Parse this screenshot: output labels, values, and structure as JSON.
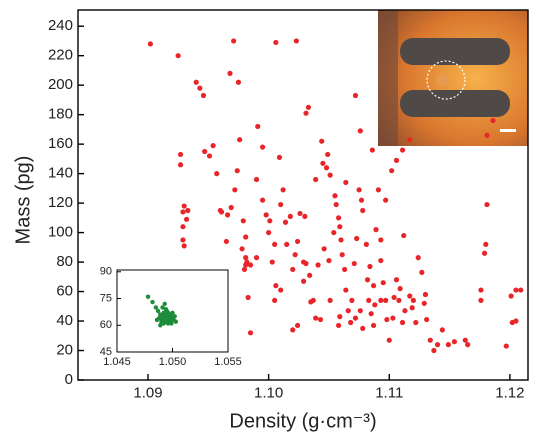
{
  "chart_data": [
    {
      "type": "scatter",
      "xlabel": "Density (g·cm⁻³)",
      "ylabel": "Mass (pg)",
      "color": "#e8262a",
      "xlim": [
        1.0842,
        1.1215
      ],
      "ylim": [
        0,
        251
      ],
      "xticks": [
        1.09,
        {
          "value": 1.1,
          "label": "1.10"
        },
        1.11,
        1.12
      ],
      "yticks": [
        0,
        20,
        40,
        60,
        80,
        100,
        120,
        140,
        160,
        180,
        200,
        220,
        240
      ],
      "x": [
        1.0902,
        1.0925,
        1.094,
        1.0943,
        1.0946,
        1.0971,
        1.0975,
        1.0968,
        1.1006,
        1.1023,
        1.0927,
        1.0927,
        1.093,
        1.0929,
        1.0932,
        1.0929,
        1.0929,
        1.093,
        1.0933,
        1.0947,
        1.0951,
        1.0954,
        1.0957,
        1.0961,
        1.0966,
        1.0969,
        1.0972,
        1.0974,
        1.0976,
        1.0979,
        1.0981,
        1.0978,
        1.0981,
        1.0982,
        1.0981,
        1.098,
        1.0983,
        1.0985,
        1.099,
        1.099,
        1.0991,
        1.0995,
        1.0995,
        1.0998,
        1.1,
        1.1001,
        1.1003,
        1.1005,
        1.1006,
        1.1009,
        1.101,
        1.1012,
        1.1014,
        1.1015,
        1.1018,
        1.102,
        1.1022,
        1.1024,
        1.1026,
        1.1029,
        1.1029,
        1.1031,
        1.1031,
        1.1033,
        1.103,
        1.1034,
        1.1037,
        1.1039,
        1.1041,
        1.1043,
        1.1044,
        1.1045,
        1.1046,
        1.1048,
        1.1049,
        1.1051,
        1.1054,
        1.1055,
        1.1056,
        1.1058,
        1.1059,
        1.106,
        1.1061,
        1.1063,
        1.1064,
        1.1066,
        1.1068,
        1.1069,
        1.1071,
        1.1073,
        1.1075,
        1.1077,
        1.1078,
        1.1081,
        1.1083,
        1.1085,
        1.1087,
        1.1088,
        1.1089,
        1.1091,
        1.1093,
        1.1093,
        1.1095,
        1.1097,
        1.1098,
        1.11,
        1.1103,
        1.1104,
        1.1106,
        1.1108,
        1.1111,
        1.1113,
        1.1117,
        1.112,
        1.1122,
        1.1124,
        1.1127,
        1.1129,
        1.1131,
        1.1134,
        1.1137,
        1.114,
        1.1149,
        1.1154,
        1.1165,
        1.1176,
        1.1179,
        1.118,
        1.1181,
        1.1186,
        1.1181,
        1.1197,
        1.1202,
        1.1205,
        1.1201,
        1.1205,
        1.1209,
        1.1176,
        1.1084,
        1.1082,
        1.1078,
        1.1076,
        1.1059,
        1.1058,
        1.105,
        1.1035,
        1.1024,
        1.101,
        1.102,
        1.1005,
        1.1039,
        1.1072,
        1.1117,
        1.1111,
        1.1106,
        1.1102,
        1.1097,
        1.1112,
        1.1093,
        1.1087,
        1.1072,
        1.1119,
        1.113,
        1.1163,
        1.1144,
        1.1109,
        1.1051,
        1.1064,
        1.1076,
        1.1086,
        1.0985,
        1.096,
        1.0965
      ],
      "values": [
        228,
        220,
        202,
        198,
        193,
        230,
        202,
        208,
        229,
        230,
        153,
        146,
        118,
        114,
        109,
        104,
        95,
        91,
        115,
        155,
        152,
        159,
        140,
        114,
        112,
        117,
        129,
        142,
        163,
        108,
        97,
        89,
        83,
        80,
        78,
        75,
        56,
        32,
        83,
        136,
        172,
        158,
        122,
        112,
        100,
        108,
        80,
        92,
        64,
        151,
        119,
        129,
        107,
        92,
        111,
        75,
        85,
        94,
        113,
        80,
        67,
        79,
        181,
        185,
        111,
        71,
        54,
        42,
        78,
        41,
        162,
        147,
        89,
        144,
        153,
        54,
        100,
        125,
        119,
        110,
        104,
        95,
        85,
        75,
        61,
        47,
        39,
        54,
        79,
        96,
        129,
        122,
        115,
        92,
        54,
        45,
        64,
        51,
        102,
        129,
        95,
        81,
        66,
        54,
        41,
        27,
        42,
        56,
        68,
        54,
        39,
        47,
        57,
        54,
        39,
        83,
        73,
        52,
        41,
        27,
        20,
        24,
        24,
        26,
        24,
        61,
        86,
        92,
        119,
        176,
        166,
        23,
        39,
        40,
        57,
        61,
        61,
        54,
        77,
        68,
        35,
        47,
        43,
        37,
        81,
        53,
        37,
        61,
        34,
        54,
        136,
        193,
        163,
        156,
        149,
        142,
        122,
        98,
        54,
        37,
        42,
        49,
        58,
        27,
        34,
        62,
        139,
        134,
        169,
        156,
        78,
        115,
        94
      ]
    },
    {
      "type": "scatter",
      "color": "#1e8c3a",
      "xlim": [
        1.045,
        1.055
      ],
      "ylim": [
        45,
        91
      ],
      "xticks": [
        1.045,
        {
          "value": 1.05,
          "label": "1.050"
        },
        1.055
      ],
      "yticks": [
        45,
        60,
        75,
        90
      ],
      "x": [
        1.0478,
        1.0482,
        1.0485,
        1.0487,
        1.0488,
        1.0489,
        1.049,
        1.049,
        1.0491,
        1.0492,
        1.0492,
        1.0493,
        1.0493,
        1.0494,
        1.0494,
        1.0495,
        1.0495,
        1.0496,
        1.0496,
        1.0497,
        1.0497,
        1.0498,
        1.0498,
        1.0499,
        1.0499,
        1.05,
        1.05,
        1.0501,
        1.0502,
        1.0503,
        1.0489,
        1.0491,
        1.0493,
        1.0495,
        1.0497,
        1.0486
      ],
      "values": [
        76,
        73,
        70,
        68,
        64,
        66,
        62,
        65,
        63,
        67,
        61,
        64,
        66,
        62,
        69,
        63,
        65,
        61,
        67,
        64,
        62,
        66,
        63,
        65,
        61,
        64,
        67,
        63,
        65,
        62,
        60,
        70,
        72,
        68,
        64,
        63
      ]
    }
  ]
}
